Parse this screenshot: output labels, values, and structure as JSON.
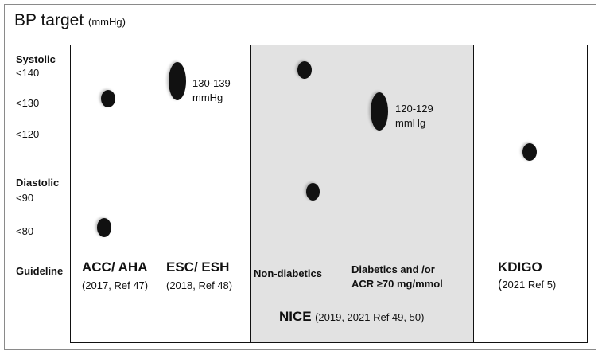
{
  "title": {
    "text": "BP  target",
    "unit": "(mmHg)"
  },
  "y_axis": {
    "systolic_label": "Systolic",
    "systolic_ticks": [
      "<140",
      "<130",
      "<120"
    ],
    "diastolic_label": "Diastolic",
    "diastolic_ticks": [
      "<90",
      "<80"
    ],
    "guideline_label": "Guideline"
  },
  "guidelines": {
    "acc_aha": {
      "name": "ACC/ AHA",
      "ref": "(2017, Ref 47)"
    },
    "esc_esh": {
      "name": "ESC/ ESH",
      "ref": "(2018, Ref 48)"
    },
    "nice": {
      "non_diabetics": "Non-diabetics",
      "diabetics_line1": "Diabetics and /or",
      "diabetics_acr_prefix": "ACR ",
      "diabetics_ge": "≥",
      "diabetics_acr_value": "70 mg/mmol",
      "name": "NICE",
      "ref": "(2019, 2021 Ref 49, 50)"
    },
    "kdigo": {
      "name": "KDIGO",
      "ref_paren": "(",
      "ref": "2021  Ref 5)"
    }
  },
  "annotations": {
    "esc_range": "130-139",
    "esc_unit": "mmHg",
    "nice_range": "120-129",
    "nice_unit": "mmHg"
  },
  "colors": {
    "dot": "#111111",
    "nice_shade": "#e2e2e2",
    "border": "#111111"
  }
}
